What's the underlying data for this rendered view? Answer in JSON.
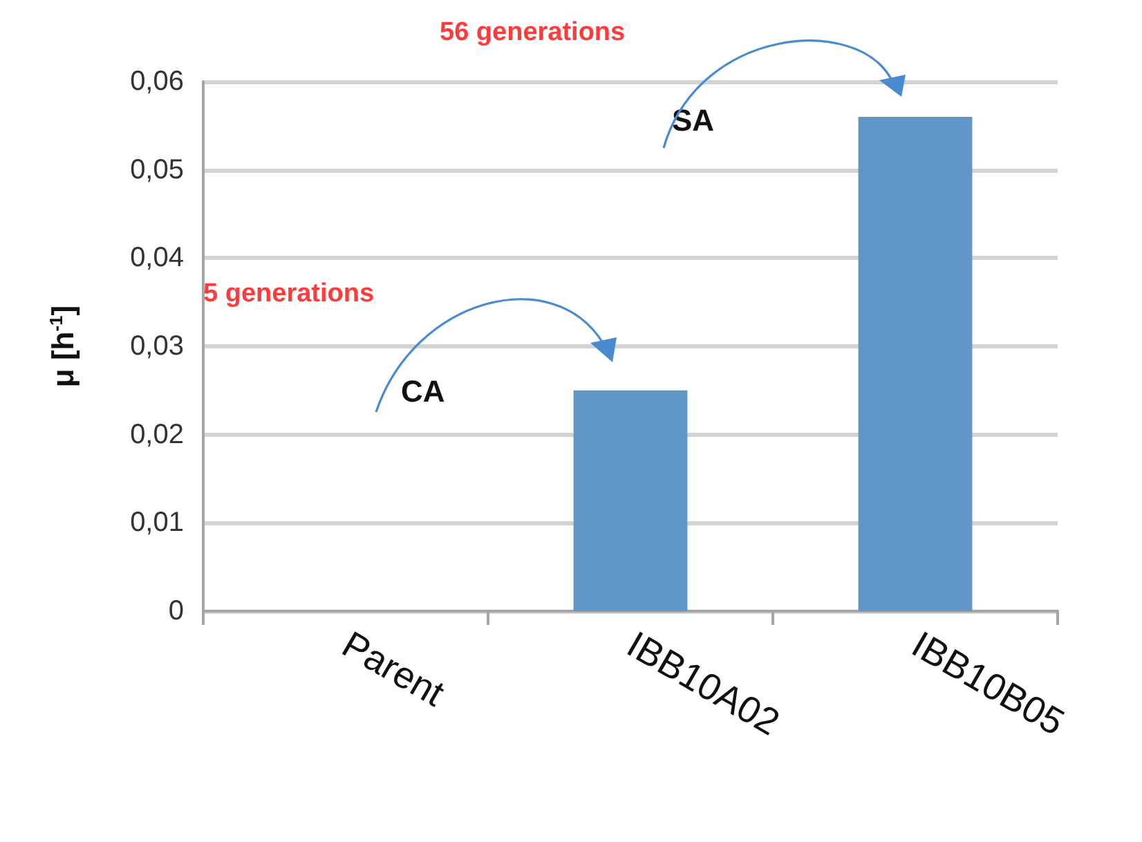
{
  "chart_data": {
    "type": "bar",
    "ylabel": "μ [h$^{-1}$]",
    "categories": [
      "Parent",
      "IBB10A02",
      "IBB10B05"
    ],
    "values": [
      0,
      0.025,
      0.056
    ],
    "color": "#6196c8",
    "ylim": [
      0,
      0.06
    ],
    "yticks": [
      0,
      {
        "value": 0.01,
        "label": "0,01"
      },
      {
        "value": 0.02,
        "label": "0,02"
      },
      {
        "value": 0.03,
        "label": "0,03"
      },
      {
        "value": 0.04,
        "label": "0,04"
      },
      {
        "value": 0.05,
        "label": "0,05"
      },
      {
        "value": 0.06,
        "label": "0,06"
      }
    ],
    "grid": "y",
    "annotations": [
      "5 generations",
      "CA",
      "56 generations",
      "SA"
    ]
  }
}
